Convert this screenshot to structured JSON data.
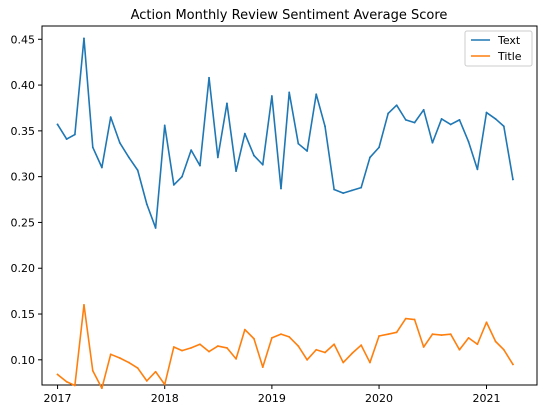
{
  "chart_data": {
    "type": "line",
    "title": "Action Monthly Review Sentiment Average Score",
    "xlabel": "",
    "ylabel": "",
    "x": [
      "2017-01",
      "2017-02",
      "2017-03",
      "2017-04",
      "2017-05",
      "2017-06",
      "2017-07",
      "2017-08",
      "2017-09",
      "2017-10",
      "2017-11",
      "2017-12",
      "2018-01",
      "2018-02",
      "2018-03",
      "2018-04",
      "2018-05",
      "2018-06",
      "2018-07",
      "2018-08",
      "2018-09",
      "2018-10",
      "2018-11",
      "2018-12",
      "2019-01",
      "2019-02",
      "2019-03",
      "2019-04",
      "2019-05",
      "2019-06",
      "2019-07",
      "2019-08",
      "2019-09",
      "2019-10",
      "2019-11",
      "2019-12",
      "2020-01",
      "2020-02",
      "2020-03",
      "2020-04",
      "2020-05",
      "2020-06",
      "2020-07",
      "2020-08",
      "2020-09",
      "2020-10",
      "2020-11",
      "2020-12",
      "2021-01",
      "2021-02",
      "2021-03",
      "2021-04"
    ],
    "series": [
      {
        "name": "Text",
        "color": "#1f77b4",
        "values": [
          0.357,
          0.341,
          0.346,
          0.451,
          0.332,
          0.31,
          0.365,
          0.337,
          0.321,
          0.307,
          0.27,
          0.244,
          0.356,
          0.291,
          0.3,
          0.329,
          0.312,
          0.408,
          0.321,
          0.38,
          0.306,
          0.347,
          0.323,
          0.313,
          0.388,
          0.287,
          0.392,
          0.336,
          0.328,
          0.39,
          0.355,
          0.286,
          0.282,
          0.285,
          0.288,
          0.321,
          0.332,
          0.369,
          0.378,
          0.362,
          0.359,
          0.373,
          0.337,
          0.363,
          0.357,
          0.362,
          0.338,
          0.308,
          0.37,
          0.363,
          0.355,
          0.297
        ]
      },
      {
        "name": "Title",
        "color": "#ff7f0e",
        "values": [
          0.084,
          0.076,
          0.072,
          0.16,
          0.088,
          0.069,
          0.106,
          0.102,
          0.097,
          0.091,
          0.077,
          0.087,
          0.073,
          0.114,
          0.11,
          0.113,
          0.117,
          0.109,
          0.115,
          0.113,
          0.101,
          0.133,
          0.123,
          0.092,
          0.124,
          0.128,
          0.125,
          0.115,
          0.1,
          0.111,
          0.108,
          0.117,
          0.097,
          0.107,
          0.116,
          0.097,
          0.126,
          0.128,
          0.13,
          0.145,
          0.144,
          0.114,
          0.128,
          0.127,
          0.128,
          0.111,
          0.124,
          0.117,
          0.141,
          0.12,
          0.111,
          0.095
        ]
      }
    ],
    "xlim": [
      "2016-11-09",
      "2021-06-22"
    ],
    "ylim": [
      0.0725,
      0.4645
    ],
    "xticks": [
      {
        "value": "2017-01",
        "label": "2017"
      },
      {
        "value": "2018-01",
        "label": "2018"
      },
      {
        "value": "2019-01",
        "label": "2019"
      },
      {
        "value": "2020-01",
        "label": "2020"
      },
      {
        "value": "2021-01",
        "label": "2021"
      }
    ],
    "yticks": [
      "0.10",
      "0.15",
      "0.20",
      "0.25",
      "0.30",
      "0.35",
      "0.40",
      "0.45"
    ],
    "grid": false,
    "legend_position": "top-right"
  }
}
